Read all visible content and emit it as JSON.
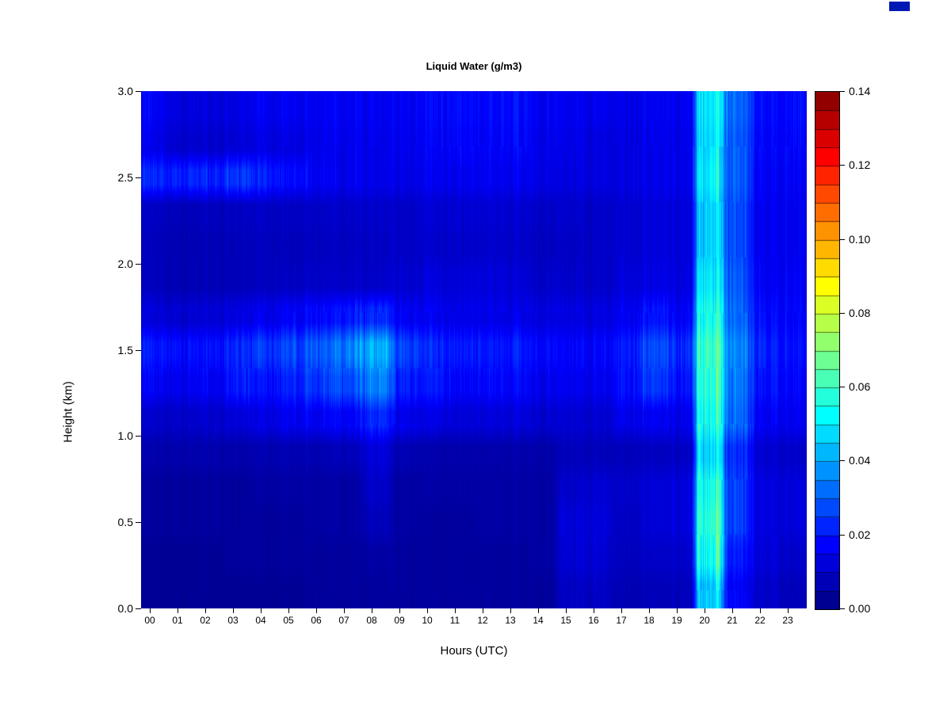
{
  "figure": {
    "background": "#ffffff",
    "corner_swatch_color": "#0018b4"
  },
  "chart_data": {
    "type": "heatmap",
    "title": "Liquid Water (g/m3)",
    "xlabel": "Hours (UTC)",
    "ylabel": "Height (km)",
    "value_units": "g/m3",
    "colormap": "jet",
    "x_range_hours": [
      0,
      24
    ],
    "y_range_km": [
      0,
      3
    ],
    "x_tick_labels": [
      "00",
      "01",
      "02",
      "03",
      "04",
      "05",
      "06",
      "07",
      "08",
      "09",
      "10",
      "11",
      "12",
      "13",
      "14",
      "15",
      "16",
      "17",
      "18",
      "19",
      "20",
      "21",
      "22",
      "23"
    ],
    "y_tick_labels": [
      "0.0",
      "0.5",
      "1.0",
      "1.5",
      "2.0",
      "2.5",
      "3.0"
    ],
    "colorbar": {
      "min": 0,
      "max": 0.14,
      "segments": 28,
      "tick_labels": [
        "0.00",
        "0.02",
        "0.04",
        "0.06",
        "0.08",
        "0.10",
        "0.12",
        "0.14"
      ]
    },
    "grid": {
      "hour_centers": [
        0.5,
        1.5,
        2.5,
        3.5,
        4.5,
        5.5,
        6.5,
        7.5,
        8.5,
        9.5,
        10.5,
        11.5,
        12.5,
        13.5,
        14.5,
        15.5,
        16.5,
        17.5,
        18.5,
        19.5,
        20.5,
        21.5,
        22.5,
        23.5
      ],
      "height_centers_km": [
        2.9,
        2.7,
        2.5,
        2.3,
        2.1,
        1.9,
        1.7,
        1.5,
        1.3,
        1.1,
        0.9,
        0.7,
        0.5,
        0.3,
        0.1
      ],
      "values_g_per_m3": [
        [
          0.016,
          0.013,
          0.012,
          0.014,
          0.016,
          0.015,
          0.016,
          0.016,
          0.015,
          0.016,
          0.017,
          0.018,
          0.017,
          0.018,
          0.016,
          0.015,
          0.015,
          0.014,
          0.016,
          0.015,
          0.05,
          0.03,
          0.018,
          0.018
        ],
        [
          0.014,
          0.011,
          0.01,
          0.012,
          0.014,
          0.013,
          0.015,
          0.015,
          0.014,
          0.015,
          0.016,
          0.017,
          0.016,
          0.017,
          0.015,
          0.014,
          0.013,
          0.013,
          0.015,
          0.014,
          0.048,
          0.028,
          0.017,
          0.017
        ],
        [
          0.022,
          0.022,
          0.02,
          0.024,
          0.022,
          0.018,
          0.016,
          0.015,
          0.014,
          0.014,
          0.015,
          0.015,
          0.015,
          0.015,
          0.014,
          0.013,
          0.013,
          0.013,
          0.015,
          0.014,
          0.05,
          0.028,
          0.016,
          0.016
        ],
        [
          0.009,
          0.008,
          0.008,
          0.009,
          0.01,
          0.009,
          0.01,
          0.01,
          0.01,
          0.01,
          0.011,
          0.011,
          0.011,
          0.011,
          0.01,
          0.01,
          0.01,
          0.011,
          0.013,
          0.012,
          0.046,
          0.026,
          0.015,
          0.015
        ],
        [
          0.008,
          0.007,
          0.007,
          0.008,
          0.009,
          0.008,
          0.009,
          0.009,
          0.009,
          0.01,
          0.01,
          0.01,
          0.01,
          0.01,
          0.009,
          0.009,
          0.01,
          0.011,
          0.013,
          0.012,
          0.046,
          0.026,
          0.015,
          0.015
        ],
        [
          0.008,
          0.007,
          0.007,
          0.008,
          0.009,
          0.009,
          0.01,
          0.01,
          0.01,
          0.011,
          0.012,
          0.012,
          0.012,
          0.012,
          0.01,
          0.01,
          0.01,
          0.012,
          0.014,
          0.013,
          0.05,
          0.028,
          0.016,
          0.016
        ],
        [
          0.012,
          0.011,
          0.011,
          0.013,
          0.015,
          0.016,
          0.018,
          0.02,
          0.022,
          0.016,
          0.015,
          0.014,
          0.014,
          0.014,
          0.013,
          0.013,
          0.013,
          0.015,
          0.02,
          0.016,
          0.055,
          0.03,
          0.018,
          0.017
        ],
        [
          0.02,
          0.019,
          0.018,
          0.022,
          0.025,
          0.026,
          0.03,
          0.034,
          0.04,
          0.026,
          0.022,
          0.02,
          0.02,
          0.02,
          0.018,
          0.017,
          0.017,
          0.02,
          0.028,
          0.022,
          0.06,
          0.034,
          0.021,
          0.019
        ],
        [
          0.016,
          0.015,
          0.015,
          0.02,
          0.02,
          0.021,
          0.025,
          0.028,
          0.034,
          0.022,
          0.019,
          0.017,
          0.017,
          0.017,
          0.015,
          0.015,
          0.015,
          0.018,
          0.025,
          0.019,
          0.058,
          0.032,
          0.019,
          0.017
        ],
        [
          0.01,
          0.01,
          0.01,
          0.012,
          0.014,
          0.015,
          0.016,
          0.017,
          0.022,
          0.015,
          0.013,
          0.012,
          0.012,
          0.012,
          0.011,
          0.011,
          0.011,
          0.014,
          0.016,
          0.014,
          0.055,
          0.03,
          0.016,
          0.015
        ],
        [
          0.006,
          0.006,
          0.006,
          0.006,
          0.007,
          0.007,
          0.007,
          0.008,
          0.012,
          0.007,
          0.006,
          0.006,
          0.006,
          0.006,
          0.006,
          0.008,
          0.008,
          0.008,
          0.009,
          0.009,
          0.048,
          0.022,
          0.011,
          0.01
        ],
        [
          0.004,
          0.004,
          0.004,
          0.004,
          0.005,
          0.005,
          0.005,
          0.005,
          0.01,
          0.005,
          0.005,
          0.005,
          0.005,
          0.005,
          0.005,
          0.01,
          0.011,
          0.01,
          0.012,
          0.012,
          0.055,
          0.024,
          0.013,
          0.012
        ],
        [
          0.004,
          0.004,
          0.004,
          0.004,
          0.004,
          0.004,
          0.005,
          0.005,
          0.008,
          0.005,
          0.004,
          0.004,
          0.005,
          0.005,
          0.005,
          0.012,
          0.012,
          0.009,
          0.012,
          0.012,
          0.058,
          0.024,
          0.013,
          0.012
        ],
        [
          0.003,
          0.003,
          0.003,
          0.004,
          0.004,
          0.004,
          0.004,
          0.004,
          0.005,
          0.004,
          0.004,
          0.004,
          0.004,
          0.004,
          0.005,
          0.011,
          0.011,
          0.008,
          0.01,
          0.01,
          0.055,
          0.02,
          0.012,
          0.01
        ],
        [
          0.003,
          0.003,
          0.003,
          0.003,
          0.003,
          0.003,
          0.004,
          0.004,
          0.004,
          0.004,
          0.004,
          0.004,
          0.004,
          0.004,
          0.004,
          0.009,
          0.009,
          0.007,
          0.008,
          0.008,
          0.045,
          0.016,
          0.01,
          0.008
        ]
      ]
    }
  }
}
